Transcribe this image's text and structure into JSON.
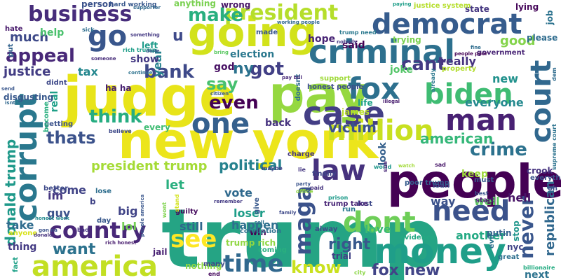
{
  "words": [
    {
      "t": "trump",
      "c": "#25a484"
    },
    {
      "t": "judge",
      "c": "#e8e419"
    },
    {
      "t": "people",
      "c": "#440154"
    },
    {
      "t": "new york",
      "c": "#ece51b"
    },
    {
      "t": "pay",
      "c": "#95d840"
    },
    {
      "t": "going",
      "c": "#d2e21b"
    },
    {
      "t": "money",
      "c": "#1f9e89"
    },
    {
      "t": "criminal",
      "c": "#2d708e"
    },
    {
      "t": "corrupt",
      "c": "#2a788e"
    },
    {
      "t": "case",
      "c": "#433e85"
    },
    {
      "t": "fox",
      "c": "#2d708e"
    },
    {
      "t": "democrat",
      "c": "#365c8d"
    },
    {
      "t": "biden",
      "c": "#3fbc73"
    },
    {
      "t": "man",
      "c": "#482173"
    },
    {
      "t": "court",
      "c": "#31688e"
    },
    {
      "t": "one",
      "c": "#35608d"
    },
    {
      "t": "million",
      "c": "#c8e020"
    },
    {
      "t": "law",
      "c": "#46327e"
    },
    {
      "t": "maga",
      "c": "#3b528b"
    },
    {
      "t": "dont",
      "c": "#6ece58"
    },
    {
      "t": "need",
      "c": "#3b528b"
    },
    {
      "t": "america",
      "c": "#c2df23"
    },
    {
      "t": "country",
      "c": "#482878"
    },
    {
      "t": "see",
      "c": "#fde725"
    },
    {
      "t": "time",
      "c": "#31688e"
    },
    {
      "t": "never",
      "c": "#39568c"
    },
    {
      "t": "go",
      "c": "#39568c"
    },
    {
      "t": "business",
      "c": "#472d7b"
    },
    {
      "t": "president",
      "c": "#b5de2b"
    },
    {
      "t": "make",
      "c": "#29af7f"
    },
    {
      "t": "appeal",
      "c": "#482878"
    },
    {
      "t": "bank",
      "c": "#3e4989"
    },
    {
      "t": "got",
      "c": "#424086"
    },
    {
      "t": "cant",
      "c": "#443a83"
    },
    {
      "t": "think",
      "c": "#26ad81"
    },
    {
      "t": "even",
      "c": "#440154"
    },
    {
      "t": "say",
      "c": "#46c06f"
    },
    {
      "t": "thats",
      "c": "#3b528b"
    },
    {
      "t": "donald trump",
      "c": "#1f998a"
    },
    {
      "t": "crime",
      "c": "#2c728e"
    },
    {
      "t": "american",
      "c": "#35b779"
    },
    {
      "t": "political",
      "c": "#26828e"
    },
    {
      "t": "president trump",
      "c": "#a5db36"
    },
    {
      "t": "want",
      "c": "#2c728e"
    },
    {
      "t": "know",
      "c": "#cae11f"
    },
    {
      "t": "fox new",
      "c": "#414487"
    },
    {
      "t": "right",
      "c": "#38588c"
    },
    {
      "t": "victim",
      "c": "#3b528b"
    },
    {
      "t": "republican",
      "c": "#31688e"
    },
    {
      "t": "much",
      "c": "#3e4a89"
    },
    {
      "t": "justice",
      "c": "#433d84"
    },
    {
      "t": "tax",
      "c": "#24878e"
    },
    {
      "t": "good",
      "c": "#84d44b"
    },
    {
      "t": "really",
      "c": "#46337f"
    },
    {
      "t": "everyone",
      "c": "#23898e"
    },
    {
      "t": "new",
      "c": "#21918c"
    },
    {
      "t": "ny",
      "c": "#2c728e"
    },
    {
      "t": "god",
      "c": "#471063"
    },
    {
      "t": "year",
      "c": "#26828e"
    },
    {
      "t": "u",
      "c": "#3e4989"
    },
    {
      "t": "state",
      "c": "#453781"
    },
    {
      "t": "said",
      "c": "#440154"
    },
    {
      "t": "hope",
      "c": "#482475"
    },
    {
      "t": "election",
      "c": "#2a788e"
    },
    {
      "t": "joke",
      "c": "#54c568"
    },
    {
      "t": "life",
      "c": "#1fa188"
    },
    {
      "t": "james",
      "c": "#b8de29"
    },
    {
      "t": "real",
      "c": "#1fa088"
    },
    {
      "t": "let",
      "c": "#29af7f"
    },
    {
      "t": "still",
      "c": "#30678d"
    },
    {
      "t": "come",
      "c": "#414487"
    },
    {
      "t": "im",
      "c": "#453781"
    },
    {
      "t": "vote",
      "c": "#306a8e"
    },
    {
      "t": "loser",
      "c": "#1f9e89"
    },
    {
      "t": "happen",
      "c": "#2d708e"
    },
    {
      "t": "love",
      "c": "#3aba76"
    },
    {
      "t": "way",
      "c": "#3b528b"
    },
    {
      "t": "keep",
      "c": "#9dd93b"
    },
    {
      "t": "hell",
      "c": "#481467"
    },
    {
      "t": "look",
      "c": "#35608d"
    },
    {
      "t": "stop",
      "c": "#1f968b"
    },
    {
      "t": "another",
      "c": "#23a983"
    },
    {
      "t": "well",
      "c": "#5ec962"
    },
    {
      "t": "job",
      "c": "#2c728e"
    },
    {
      "t": "big",
      "c": "#414487"
    },
    {
      "t": "lol",
      "c": "#74d055"
    },
    {
      "t": "guy",
      "c": "#3b528b"
    },
    {
      "t": "take",
      "c": "#2f6c8e"
    },
    {
      "t": "thing",
      "c": "#443b84"
    },
    {
      "t": "back",
      "c": "#46337f"
    },
    {
      "t": "show",
      "c": "#443983"
    },
    {
      "t": "help",
      "c": "#4ac16d"
    },
    {
      "t": "every",
      "c": "#3fbc73"
    },
    {
      "t": "nothing",
      "c": "#8fd744"
    },
    {
      "t": "trump rich",
      "c": "#90d743"
    },
    {
      "t": "ha ha",
      "c": "#482071"
    },
    {
      "t": "left",
      "c": "#1e9b8a"
    },
    {
      "t": "hard working",
      "c": "#38588c"
    },
    {
      "t": "anything",
      "c": "#7ad151"
    },
    {
      "t": "wrong",
      "c": "#481668"
    },
    {
      "t": "person",
      "c": "#3b528b"
    },
    {
      "t": "justice system",
      "c": "#b5de2b"
    },
    {
      "t": "lying",
      "c": "#46075a"
    },
    {
      "t": "put",
      "c": "#33638d"
    },
    {
      "t": "hate",
      "c": "#481a6c"
    },
    {
      "t": "didnt",
      "c": "#3e4989"
    },
    {
      "t": "disgusting",
      "c": "#38588c"
    },
    {
      "t": "getting",
      "c": "#3b528b"
    },
    {
      "t": "become",
      "c": "#29af7f"
    },
    {
      "t": "guilty",
      "c": "#460b5e"
    },
    {
      "t": "lose",
      "c": "#2e6e8e"
    },
    {
      "t": "better",
      "c": "#3e4a89"
    },
    {
      "t": "charge",
      "c": "#453882"
    },
    {
      "t": "maybe",
      "c": "#414487"
    },
    {
      "t": "honest people",
      "c": "#3d4e8a"
    },
    {
      "t": "support",
      "c": "#9fda3a"
    },
    {
      "t": "made",
      "c": "#39568c"
    },
    {
      "t": "trying",
      "c": "#7ad151"
    },
    {
      "t": "crook",
      "c": "#46337f"
    },
    {
      "t": "must",
      "c": "#365c8d"
    },
    {
      "t": "sad",
      "c": "#481769"
    },
    {
      "t": "trial",
      "c": "#424186"
    },
    {
      "t": "lost",
      "c": "#3e4989"
    },
    {
      "t": "loan",
      "c": "#3b528b"
    },
    {
      "t": "poor trump",
      "c": "#365c8d"
    },
    {
      "t": "finally",
      "c": "#404588"
    },
    {
      "t": "paid",
      "c": "#46337f"
    },
    {
      "t": "lie",
      "c": "#453781"
    },
    {
      "t": "world",
      "c": "#1f968b"
    },
    {
      "t": "government",
      "c": "#482475"
    },
    {
      "t": "property",
      "c": "#b2dd2d"
    },
    {
      "t": "everything",
      "c": "#3b528b"
    },
    {
      "t": "start",
      "c": "#481f70"
    },
    {
      "t": "best",
      "c": "#3a548c"
    },
    {
      "t": "evil",
      "c": "#2c728e"
    },
    {
      "t": "great",
      "c": "#2e6f8e"
    },
    {
      "t": "evidence",
      "c": "#23a983"
    },
    {
      "t": "nyc",
      "c": "#414487"
    },
    {
      "t": "putin",
      "c": "#33628d"
    },
    {
      "t": "next",
      "c": "#2c728e"
    },
    {
      "t": "city",
      "c": "#8bd646"
    },
    {
      "t": "coming",
      "c": "#29af7f"
    },
    {
      "t": "end",
      "c": "#460a5d"
    },
    {
      "t": "win",
      "c": "#440154"
    },
    {
      "t": "corruption",
      "c": "#2d708e"
    },
    {
      "t": "alway",
      "c": "#3e4989"
    },
    {
      "t": "run",
      "c": "#2a788e"
    },
    {
      "t": "trump take",
      "c": "#482576"
    },
    {
      "t": "give",
      "c": "#38588c"
    },
    {
      "t": "prison",
      "c": "#1e9b8a"
    },
    {
      "t": "jail",
      "c": "#482173"
    },
    {
      "t": "many",
      "c": "#3e4989"
    },
    {
      "t": "day",
      "c": "#38588c"
    },
    {
      "t": "bad",
      "c": "#463480"
    },
    {
      "t": "fact",
      "c": "#1fa188"
    },
    {
      "t": "anyone",
      "c": "#d8e219"
    },
    {
      "t": "honest work",
      "c": "#23898e"
    },
    {
      "t": "rich honest",
      "c": "#481d6f"
    },
    {
      "t": "oh",
      "c": "#3f4889"
    },
    {
      "t": "dem",
      "c": "#2f6c8e"
    },
    {
      "t": "please",
      "c": "#2f6c8e"
    },
    {
      "t": "supreme court",
      "c": "#2c738e"
    },
    {
      "t": "billionaire",
      "c": "#25ac82"
    },
    {
      "t": "already",
      "c": "#2a788e"
    },
    {
      "t": "illegal",
      "c": "#481d6f"
    },
    {
      "t": "doesnt",
      "c": "#2e6e8e"
    },
    {
      "t": "nobody",
      "c": "#453882"
    },
    {
      "t": "trump need",
      "c": "#2a788e"
    },
    {
      "t": "working people",
      "c": "#31688e"
    },
    {
      "t": "paying",
      "c": "#1f9e89"
    },
    {
      "t": "sick",
      "c": "#2e6e8e"
    },
    {
      "t": "something",
      "c": "#443983"
    },
    {
      "t": "supporter",
      "c": "#30678d"
    },
    {
      "t": "someone",
      "c": "#472c7a"
    },
    {
      "t": "continue",
      "c": "#2c728e"
    },
    {
      "t": "rich trump",
      "c": "#1f9e89"
    },
    {
      "t": "done",
      "c": "#3b528b"
    },
    {
      "t": "bring",
      "c": "#5cc863"
    },
    {
      "t": "citizen",
      "c": "#38598c"
    },
    {
      "t": "pay bill",
      "c": "#482878"
    },
    {
      "t": "fine",
      "c": "#2e6d8e"
    },
    {
      "t": "people poor",
      "c": "#440154"
    },
    {
      "t": "send",
      "c": "#39568c"
    },
    {
      "t": "isnt",
      "c": "#30678d"
    },
    {
      "t": "believe",
      "c": "#3e4989"
    },
    {
      "t": "gon na",
      "c": "#3b528b"
    },
    {
      "t": "donald",
      "c": "#46337f"
    },
    {
      "t": "people america",
      "c": "#39568c"
    },
    {
      "t": "stand",
      "c": "#d2e21b"
    },
    {
      "t": "wont",
      "c": "#7fd34e"
    },
    {
      "t": "remember",
      "c": "#443a83"
    },
    {
      "t": "office",
      "c": "#90d743"
    },
    {
      "t": "party",
      "c": "#3a548c"
    },
    {
      "t": "watch",
      "c": "#a2da37"
    },
    {
      "t": "sell",
      "c": "#2c728e"
    },
    {
      "t": "family",
      "c": "#3e4989"
    },
    {
      "t": "sue",
      "c": "#482878"
    },
    {
      "t": "b",
      "c": "#414487"
    }
  ]
}
